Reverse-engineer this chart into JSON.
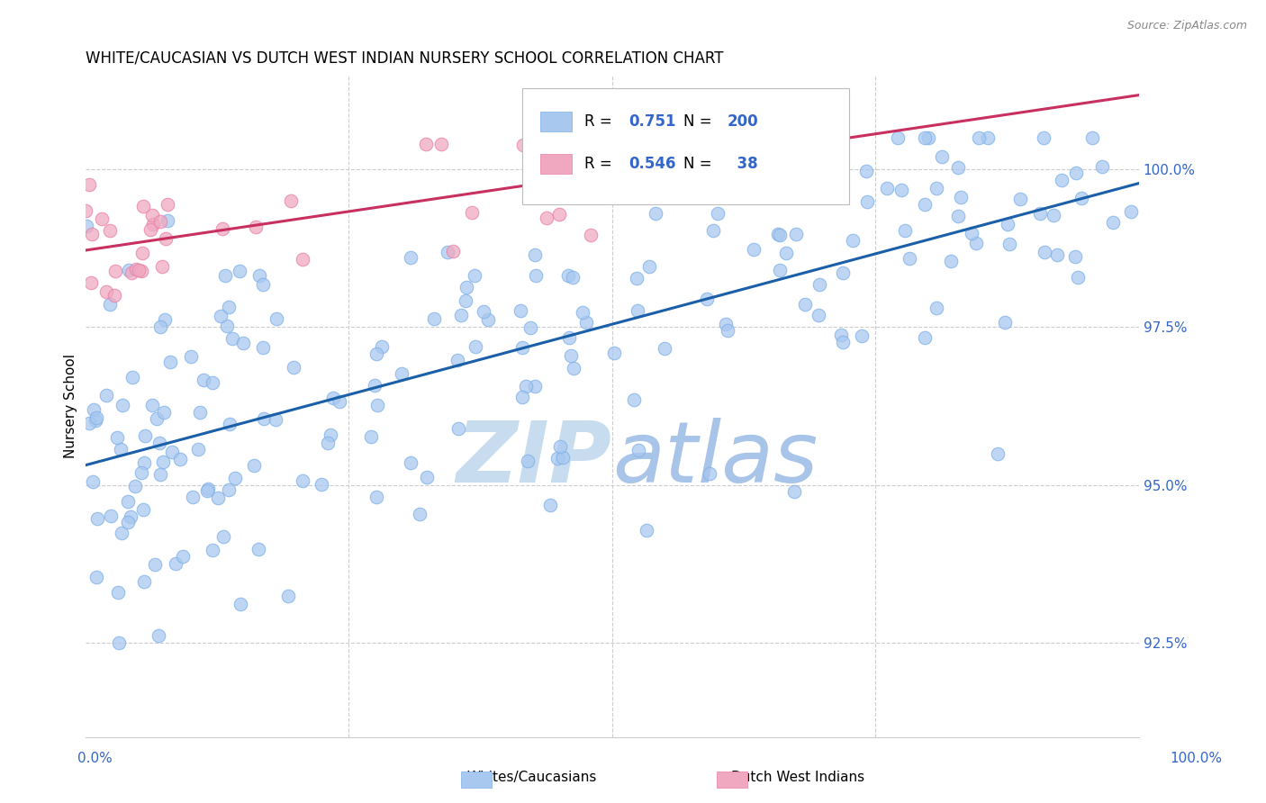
{
  "title": "WHITE/CAUCASIAN VS DUTCH WEST INDIAN NURSERY SCHOOL CORRELATION CHART",
  "source": "Source: ZipAtlas.com",
  "ylabel": "Nursery School",
  "ytick_values": [
    92.5,
    95.0,
    97.5,
    100.0
  ],
  "xlim": [
    0.0,
    100.0
  ],
  "ylim": [
    91.0,
    101.5
  ],
  "legend_label_blue": "Whites/Caucasians",
  "legend_label_pink": "Dutch West Indians",
  "R_blue": 0.751,
  "N_blue": 200,
  "R_pink": 0.546,
  "N_pink": 38,
  "blue_color": "#A8C8F0",
  "blue_edge_color": "#7EB0E8",
  "blue_line_color": "#1A5FA8",
  "pink_color": "#F0A8C0",
  "pink_edge_color": "#E880A8",
  "pink_line_color": "#C83060",
  "watermark_zip_color": "#C8DCF0",
  "watermark_atlas_color": "#A8C4E8",
  "title_fontsize": 12,
  "tick_label_color": "#3366CC",
  "grid_color": "#CCCCCC",
  "seed": 7
}
